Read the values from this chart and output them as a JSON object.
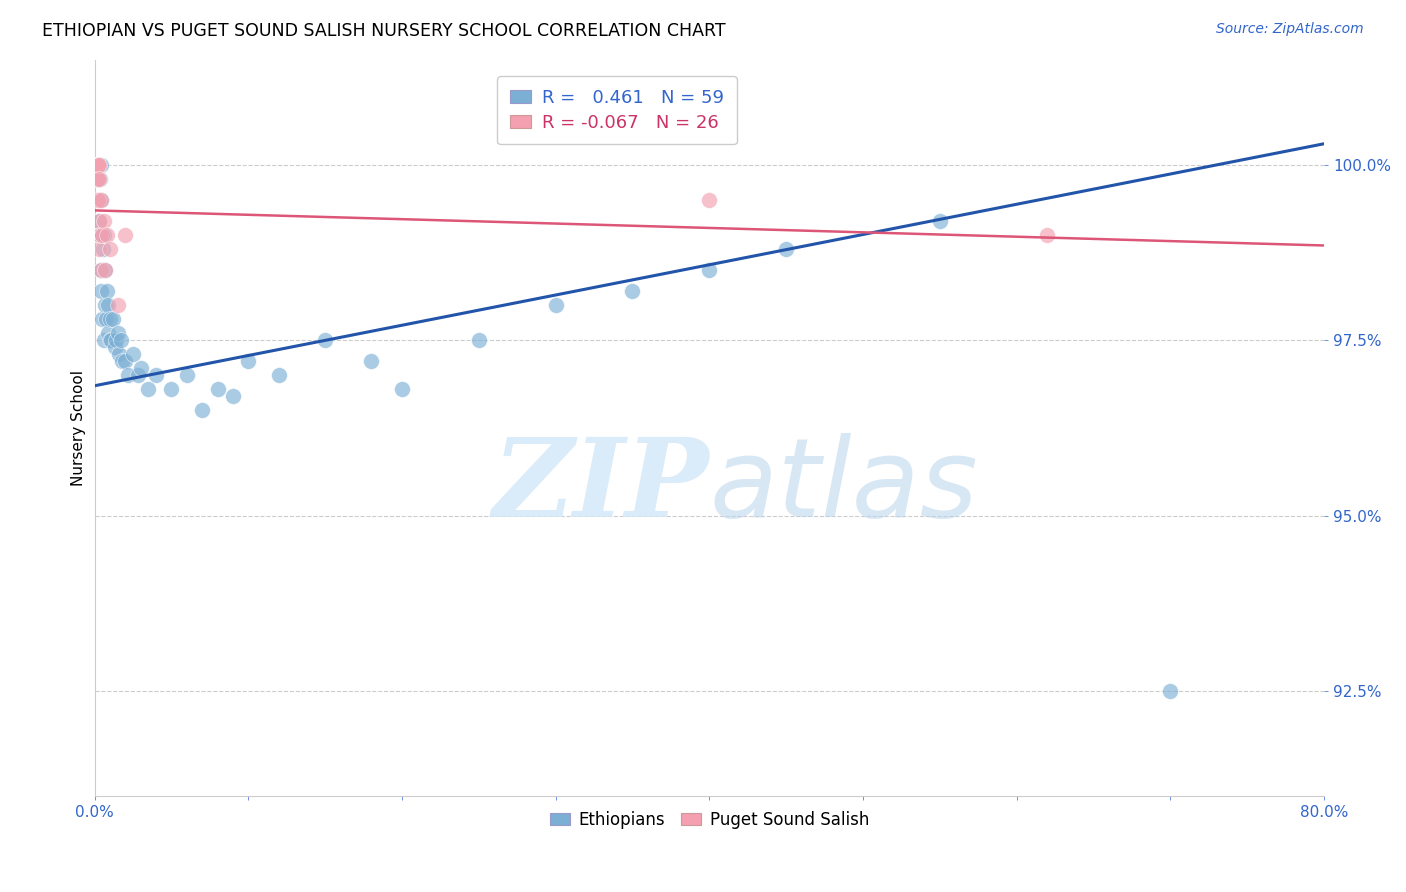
{
  "title": "ETHIOPIAN VS PUGET SOUND SALISH NURSERY SCHOOL CORRELATION CHART",
  "source": "Source: ZipAtlas.com",
  "ylabel": "Nursery School",
  "ytick_labels": [
    "92.5%",
    "95.0%",
    "97.5%",
    "100.0%"
  ],
  "ytick_values": [
    92.5,
    95.0,
    97.5,
    100.0
  ],
  "xlim": [
    0.0,
    80.0
  ],
  "ylim": [
    91.0,
    101.5
  ],
  "legend_blue_r": "0.461",
  "legend_blue_n": "59",
  "legend_pink_r": "-0.067",
  "legend_pink_n": "26",
  "blue_color": "#7bafd4",
  "pink_color": "#f4a0b0",
  "trendline_blue": "#2255aa",
  "trendline_pink": "#dd5577",
  "blue_scatter_x": [
    0.1,
    0.15,
    0.2,
    0.2,
    0.25,
    0.25,
    0.3,
    0.3,
    0.35,
    0.35,
    0.4,
    0.4,
    0.45,
    0.45,
    0.5,
    0.5,
    0.55,
    0.6,
    0.6,
    0.65,
    0.7,
    0.75,
    0.8,
    0.85,
    0.9,
    1.0,
    1.0,
    1.1,
    1.2,
    1.3,
    1.4,
    1.5,
    1.6,
    1.7,
    1.8,
    2.0,
    2.2,
    2.5,
    2.8,
    3.0,
    3.5,
    4.0,
    5.0,
    6.0,
    7.0,
    8.0,
    9.0,
    10.0,
    12.0,
    15.0,
    18.0,
    20.0,
    25.0,
    30.0,
    35.0,
    40.0,
    45.0,
    55.0,
    70.0
  ],
  "blue_scatter_y": [
    100.0,
    100.0,
    100.0,
    99.8,
    100.0,
    99.5,
    100.0,
    99.2,
    99.8,
    99.0,
    100.0,
    98.5,
    99.5,
    98.2,
    99.0,
    97.8,
    98.8,
    99.0,
    97.5,
    98.5,
    98.0,
    97.8,
    98.2,
    97.6,
    98.0,
    97.8,
    97.5,
    97.5,
    97.8,
    97.4,
    97.5,
    97.6,
    97.3,
    97.5,
    97.2,
    97.2,
    97.0,
    97.3,
    97.0,
    97.1,
    96.8,
    97.0,
    96.8,
    97.0,
    96.5,
    96.8,
    96.7,
    97.2,
    97.0,
    97.5,
    97.2,
    96.8,
    97.5,
    98.0,
    98.2,
    98.5,
    98.8,
    99.2,
    92.5
  ],
  "pink_scatter_x": [
    0.1,
    0.12,
    0.15,
    0.15,
    0.18,
    0.2,
    0.2,
    0.22,
    0.25,
    0.25,
    0.28,
    0.3,
    0.3,
    0.32,
    0.35,
    0.4,
    0.45,
    0.5,
    0.6,
    0.7,
    0.8,
    1.0,
    1.5,
    2.0,
    40.0,
    62.0
  ],
  "pink_scatter_y": [
    100.0,
    100.0,
    100.0,
    99.8,
    100.0,
    100.0,
    99.5,
    100.0,
    99.8,
    99.5,
    100.0,
    99.2,
    99.8,
    98.8,
    99.0,
    98.5,
    99.5,
    99.0,
    99.2,
    98.5,
    99.0,
    98.8,
    98.0,
    99.0,
    99.5,
    99.0
  ],
  "blue_trend_x0": 0.0,
  "blue_trend_y0": 96.85,
  "blue_trend_x1": 80.0,
  "blue_trend_y1": 100.3,
  "pink_trend_x0": 0.0,
  "pink_trend_y0": 99.35,
  "pink_trend_x1": 80.0,
  "pink_trend_y1": 98.85
}
